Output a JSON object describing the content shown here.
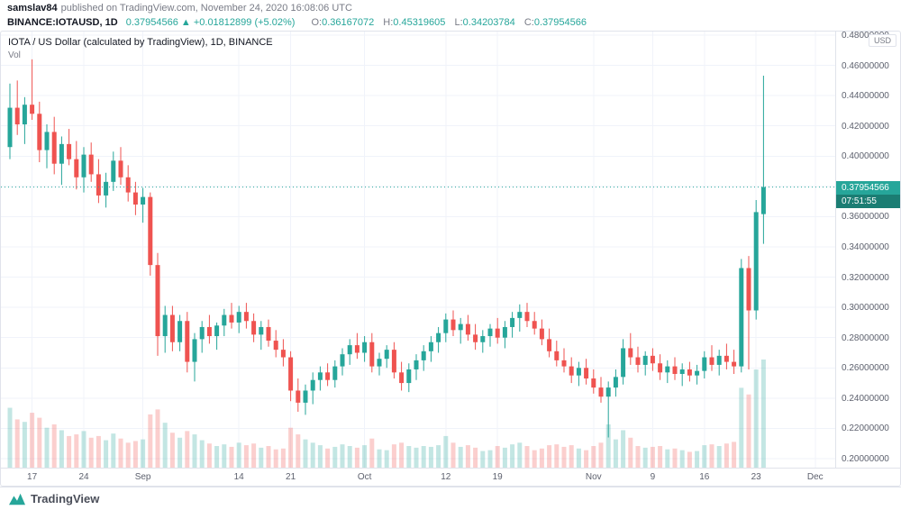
{
  "publish_bar": {
    "username": "samslav84",
    "suffix": "published on TradingView.com, November 24, 2020 16:08:06 UTC"
  },
  "symbol_bar": {
    "symbol": "BINANCE:IOTAUSD, 1D",
    "last_price": "0.37954566",
    "change_arrow": "▲",
    "change_abs": "+0.01812899",
    "change_pct": "(+5.02%)",
    "ohlc": [
      {
        "label": "O:",
        "value": "0.36167072"
      },
      {
        "label": "H:",
        "value": "0.45319605"
      },
      {
        "label": "L:",
        "value": "0.34203784"
      },
      {
        "label": "C:",
        "value": "0.37954566"
      }
    ]
  },
  "chart_header": {
    "legend": "IOTA / US Dollar (calculated by TradingView), 1D, BINANCE",
    "vol_label": "Vol",
    "currency_button": "USD"
  },
  "price_scale": {
    "ticks": [
      "0.48000000",
      "0.46000000",
      "0.44000000",
      "0.42000000",
      "0.40000000",
      "0.38000000",
      "0.36000000",
      "0.34000000",
      "0.32000000",
      "0.30000000",
      "0.28000000",
      "0.26000000",
      "0.24000000",
      "0.22000000",
      "0.20000000"
    ],
    "last_price_badge": "0.37954566",
    "countdown": "07:51:55"
  },
  "time_scale": {
    "ticks": [
      {
        "label": "17",
        "index": 3
      },
      {
        "label": "24",
        "index": 10
      },
      {
        "label": "Sep",
        "index": 18
      },
      {
        "label": "14",
        "index": 31
      },
      {
        "label": "21",
        "index": 38
      },
      {
        "label": "Oct",
        "index": 48
      },
      {
        "label": "12",
        "index": 59
      },
      {
        "label": "19",
        "index": 66
      },
      {
        "label": "Nov",
        "index": 79
      },
      {
        "label": "9",
        "index": 87
      },
      {
        "label": "16",
        "index": 94
      },
      {
        "label": "23",
        "index": 101
      },
      {
        "label": "Dec",
        "index": 109
      }
    ]
  },
  "footer": {
    "brand": "TradingView"
  },
  "colors": {
    "up": "#26a69a",
    "down": "#ef5350",
    "grid": "#f0f3fa",
    "axis_text": "#5d616e",
    "border": "#e0e3eb",
    "badge_bg": "#26a69a",
    "countdown_bg": "#1b7d73"
  },
  "chart_data": {
    "type": "candlestick",
    "title": "IOTA / US Dollar (calculated by TradingView), 1D, BINANCE",
    "symbol": "BINANCE:IOTAUSD",
    "interval": "1D",
    "current_price": 0.37954566,
    "axis_top": 0.48,
    "axis_bottom": 0.2,
    "price_step": 0.02,
    "legend_position": "top-left",
    "grid": true,
    "columns": [
      "date",
      "open",
      "high",
      "low",
      "close",
      "volume"
    ],
    "candles": [
      [
        "2020-08-14",
        0.406,
        0.448,
        0.398,
        0.432,
        72
      ],
      [
        "2020-08-15",
        0.432,
        0.45,
        0.414,
        0.421,
        58
      ],
      [
        "2020-08-16",
        0.421,
        0.439,
        0.408,
        0.434,
        55
      ],
      [
        "2020-08-17",
        0.434,
        0.464,
        0.424,
        0.428,
        66
      ],
      [
        "2020-08-18",
        0.428,
        0.436,
        0.396,
        0.404,
        60
      ],
      [
        "2020-08-19",
        0.404,
        0.421,
        0.392,
        0.416,
        48
      ],
      [
        "2020-08-20",
        0.416,
        0.426,
        0.388,
        0.395,
        52
      ],
      [
        "2020-08-21",
        0.395,
        0.413,
        0.381,
        0.408,
        45
      ],
      [
        "2020-08-22",
        0.408,
        0.418,
        0.394,
        0.398,
        38
      ],
      [
        "2020-08-23",
        0.398,
        0.41,
        0.378,
        0.386,
        40
      ],
      [
        "2020-08-24",
        0.386,
        0.406,
        0.376,
        0.401,
        44
      ],
      [
        "2020-08-25",
        0.401,
        0.409,
        0.383,
        0.388,
        36
      ],
      [
        "2020-08-26",
        0.388,
        0.398,
        0.369,
        0.374,
        38
      ],
      [
        "2020-08-27",
        0.374,
        0.389,
        0.366,
        0.383,
        33
      ],
      [
        "2020-08-28",
        0.383,
        0.403,
        0.377,
        0.397,
        41
      ],
      [
        "2020-08-29",
        0.397,
        0.406,
        0.381,
        0.386,
        35
      ],
      [
        "2020-08-30",
        0.386,
        0.394,
        0.37,
        0.376,
        30
      ],
      [
        "2020-08-31",
        0.376,
        0.383,
        0.361,
        0.368,
        32
      ],
      [
        "2020-09-01",
        0.368,
        0.379,
        0.356,
        0.373,
        34
      ],
      [
        "2020-09-02",
        0.373,
        0.376,
        0.321,
        0.328,
        64
      ],
      [
        "2020-09-03",
        0.328,
        0.336,
        0.268,
        0.281,
        70
      ],
      [
        "2020-09-04",
        0.281,
        0.301,
        0.27,
        0.295,
        54
      ],
      [
        "2020-09-05",
        0.295,
        0.301,
        0.271,
        0.277,
        42
      ],
      [
        "2020-09-06",
        0.277,
        0.295,
        0.271,
        0.291,
        36
      ],
      [
        "2020-09-07",
        0.291,
        0.297,
        0.257,
        0.264,
        44
      ],
      [
        "2020-09-08",
        0.264,
        0.283,
        0.251,
        0.279,
        40
      ],
      [
        "2020-09-09",
        0.279,
        0.291,
        0.27,
        0.287,
        33
      ],
      [
        "2020-09-10",
        0.287,
        0.295,
        0.276,
        0.281,
        29
      ],
      [
        "2020-09-11",
        0.281,
        0.29,
        0.272,
        0.288,
        26
      ],
      [
        "2020-09-12",
        0.288,
        0.299,
        0.281,
        0.295,
        28
      ],
      [
        "2020-09-13",
        0.295,
        0.303,
        0.286,
        0.29,
        25
      ],
      [
        "2020-09-14",
        0.29,
        0.301,
        0.283,
        0.297,
        30
      ],
      [
        "2020-09-15",
        0.297,
        0.303,
        0.286,
        0.291,
        27
      ],
      [
        "2020-09-16",
        0.291,
        0.296,
        0.277,
        0.282,
        29
      ],
      [
        "2020-09-17",
        0.282,
        0.291,
        0.272,
        0.287,
        24
      ],
      [
        "2020-09-18",
        0.287,
        0.292,
        0.274,
        0.278,
        26
      ],
      [
        "2020-09-19",
        0.278,
        0.285,
        0.267,
        0.272,
        22
      ],
      [
        "2020-09-20",
        0.272,
        0.279,
        0.261,
        0.267,
        23
      ],
      [
        "2020-09-21",
        0.267,
        0.271,
        0.238,
        0.245,
        48
      ],
      [
        "2020-09-22",
        0.245,
        0.253,
        0.231,
        0.237,
        40
      ],
      [
        "2020-09-23",
        0.237,
        0.249,
        0.229,
        0.245,
        34
      ],
      [
        "2020-09-24",
        0.245,
        0.257,
        0.236,
        0.252,
        30
      ],
      [
        "2020-09-25",
        0.252,
        0.261,
        0.245,
        0.257,
        27
      ],
      [
        "2020-09-26",
        0.257,
        0.263,
        0.248,
        0.252,
        23
      ],
      [
        "2020-09-27",
        0.252,
        0.265,
        0.247,
        0.261,
        25
      ],
      [
        "2020-09-28",
        0.261,
        0.273,
        0.255,
        0.269,
        28
      ],
      [
        "2020-09-29",
        0.269,
        0.279,
        0.262,
        0.275,
        26
      ],
      [
        "2020-09-30",
        0.275,
        0.283,
        0.266,
        0.27,
        24
      ],
      [
        "2020-10-01",
        0.27,
        0.281,
        0.264,
        0.277,
        27
      ],
      [
        "2020-10-02",
        0.277,
        0.283,
        0.257,
        0.261,
        35
      ],
      [
        "2020-10-03",
        0.261,
        0.27,
        0.255,
        0.266,
        22
      ],
      [
        "2020-10-04",
        0.266,
        0.275,
        0.26,
        0.272,
        21
      ],
      [
        "2020-10-05",
        0.272,
        0.277,
        0.253,
        0.257,
        28
      ],
      [
        "2020-10-06",
        0.257,
        0.264,
        0.245,
        0.25,
        30
      ],
      [
        "2020-10-07",
        0.25,
        0.263,
        0.244,
        0.259,
        26
      ],
      [
        "2020-10-08",
        0.259,
        0.269,
        0.252,
        0.265,
        24
      ],
      [
        "2020-10-09",
        0.265,
        0.275,
        0.258,
        0.271,
        26
      ],
      [
        "2020-10-10",
        0.271,
        0.281,
        0.264,
        0.277,
        25
      ],
      [
        "2020-10-11",
        0.277,
        0.287,
        0.27,
        0.283,
        27
      ],
      [
        "2020-10-12",
        0.283,
        0.296,
        0.277,
        0.292,
        38
      ],
      [
        "2020-10-13",
        0.292,
        0.298,
        0.281,
        0.285,
        30
      ],
      [
        "2020-10-14",
        0.285,
        0.293,
        0.276,
        0.289,
        25
      ],
      [
        "2020-10-15",
        0.289,
        0.295,
        0.278,
        0.282,
        27
      ],
      [
        "2020-10-16",
        0.282,
        0.289,
        0.272,
        0.277,
        24
      ],
      [
        "2020-10-17",
        0.277,
        0.285,
        0.27,
        0.281,
        20
      ],
      [
        "2020-10-18",
        0.281,
        0.289,
        0.274,
        0.286,
        21
      ],
      [
        "2020-10-19",
        0.286,
        0.293,
        0.276,
        0.28,
        26
      ],
      [
        "2020-10-20",
        0.28,
        0.291,
        0.273,
        0.287,
        24
      ],
      [
        "2020-10-21",
        0.287,
        0.297,
        0.28,
        0.293,
        28
      ],
      [
        "2020-10-22",
        0.293,
        0.302,
        0.284,
        0.297,
        30
      ],
      [
        "2020-10-23",
        0.297,
        0.303,
        0.287,
        0.291,
        26
      ],
      [
        "2020-10-24",
        0.291,
        0.297,
        0.282,
        0.286,
        21
      ],
      [
        "2020-10-25",
        0.286,
        0.292,
        0.275,
        0.279,
        23
      ],
      [
        "2020-10-26",
        0.279,
        0.286,
        0.267,
        0.271,
        27
      ],
      [
        "2020-10-27",
        0.271,
        0.278,
        0.261,
        0.265,
        28
      ],
      [
        "2020-10-28",
        0.265,
        0.273,
        0.257,
        0.261,
        25
      ],
      [
        "2020-10-29",
        0.261,
        0.267,
        0.25,
        0.255,
        27
      ],
      [
        "2020-10-30",
        0.255,
        0.264,
        0.248,
        0.26,
        23
      ],
      [
        "2020-10-31",
        0.26,
        0.266,
        0.249,
        0.253,
        21
      ],
      [
        "2020-11-01",
        0.253,
        0.259,
        0.243,
        0.247,
        26
      ],
      [
        "2020-11-02",
        0.247,
        0.254,
        0.237,
        0.241,
        30
      ],
      [
        "2020-11-03",
        0.241,
        0.251,
        0.214,
        0.247,
        52
      ],
      [
        "2020-11-04",
        0.247,
        0.259,
        0.241,
        0.254,
        34
      ],
      [
        "2020-11-05",
        0.254,
        0.279,
        0.249,
        0.273,
        45
      ],
      [
        "2020-11-06",
        0.273,
        0.283,
        0.262,
        0.267,
        36
      ],
      [
        "2020-11-07",
        0.267,
        0.274,
        0.257,
        0.262,
        26
      ],
      [
        "2020-11-08",
        0.262,
        0.271,
        0.255,
        0.268,
        24
      ],
      [
        "2020-11-09",
        0.268,
        0.273,
        0.258,
        0.263,
        25
      ],
      [
        "2020-11-10",
        0.263,
        0.269,
        0.252,
        0.257,
        26
      ],
      [
        "2020-11-11",
        0.257,
        0.265,
        0.25,
        0.261,
        22
      ],
      [
        "2020-11-12",
        0.261,
        0.267,
        0.252,
        0.256,
        23
      ],
      [
        "2020-11-13",
        0.256,
        0.263,
        0.248,
        0.259,
        21
      ],
      [
        "2020-11-14",
        0.259,
        0.264,
        0.251,
        0.255,
        19
      ],
      [
        "2020-11-15",
        0.255,
        0.262,
        0.249,
        0.258,
        20
      ],
      [
        "2020-11-16",
        0.258,
        0.271,
        0.253,
        0.267,
        27
      ],
      [
        "2020-11-17",
        0.267,
        0.275,
        0.258,
        0.262,
        28
      ],
      [
        "2020-11-18",
        0.262,
        0.272,
        0.255,
        0.268,
        26
      ],
      [
        "2020-11-19",
        0.268,
        0.276,
        0.259,
        0.264,
        29
      ],
      [
        "2020-11-20",
        0.264,
        0.272,
        0.256,
        0.261,
        31
      ],
      [
        "2020-11-21",
        0.261,
        0.332,
        0.257,
        0.326,
        96
      ],
      [
        "2020-11-22",
        0.326,
        0.334,
        0.259,
        0.298,
        88
      ],
      [
        "2020-11-23",
        0.298,
        0.371,
        0.292,
        0.363,
        118
      ],
      [
        "2020-11-24",
        0.36167072,
        0.45319605,
        0.34203784,
        0.37954566,
        130
      ]
    ]
  }
}
